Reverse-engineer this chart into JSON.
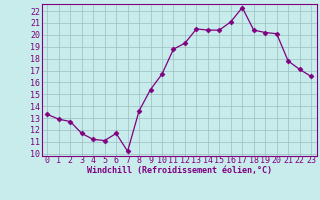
{
  "x": [
    0,
    1,
    2,
    3,
    4,
    5,
    6,
    7,
    8,
    9,
    10,
    11,
    12,
    13,
    14,
    15,
    16,
    17,
    18,
    19,
    20,
    21,
    22,
    23
  ],
  "y": [
    13.3,
    12.9,
    12.7,
    11.7,
    11.2,
    11.1,
    11.7,
    10.2,
    13.6,
    15.4,
    16.7,
    18.8,
    19.3,
    20.5,
    20.4,
    20.4,
    21.1,
    22.3,
    20.4,
    20.2,
    20.1,
    17.8,
    17.1,
    16.5
  ],
  "line_color": "#800080",
  "marker": "D",
  "marker_size": 2.5,
  "bg_color": "#c8ecec",
  "grid_color": "#9bbfbf",
  "xlabel": "Windchill (Refroidissement éolien,°C)",
  "xlabel_color": "#800080",
  "tick_color": "#800080",
  "ylim": [
    9.8,
    22.6
  ],
  "xlim": [
    -0.5,
    23.5
  ],
  "yticks": [
    10,
    11,
    12,
    13,
    14,
    15,
    16,
    17,
    18,
    19,
    20,
    21,
    22
  ],
  "xticks": [
    0,
    1,
    2,
    3,
    4,
    5,
    6,
    7,
    8,
    9,
    10,
    11,
    12,
    13,
    14,
    15,
    16,
    17,
    18,
    19,
    20,
    21,
    22,
    23
  ],
  "tick_fontsize": 6,
  "xlabel_fontsize": 6
}
